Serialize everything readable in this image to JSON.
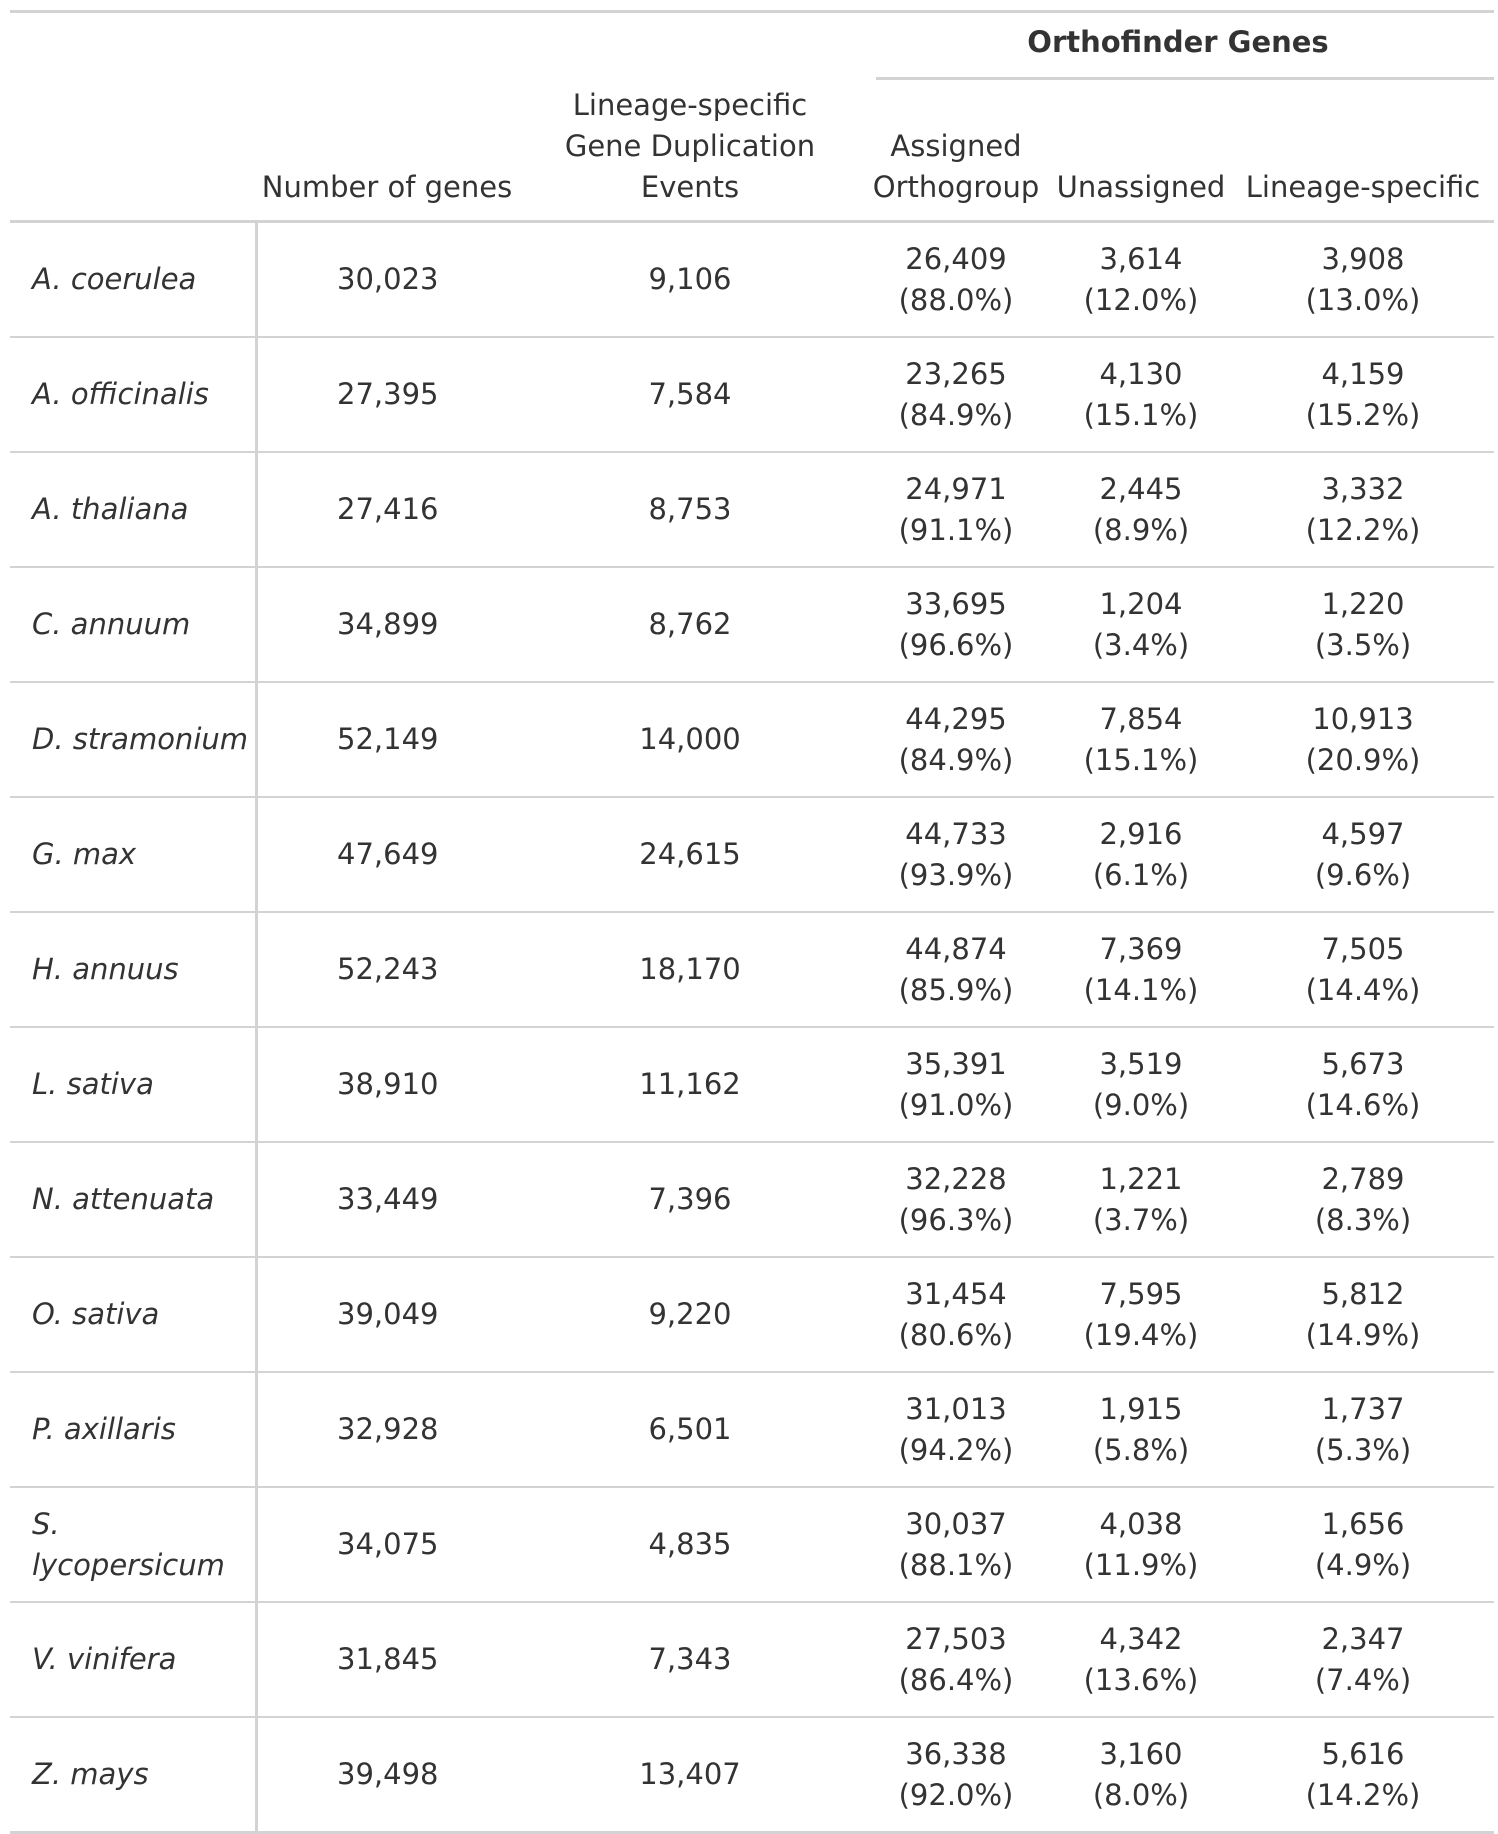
{
  "table": {
    "spanner_label": "Orthofinder Genes",
    "headers": {
      "species": "",
      "genes": "Number of genes",
      "dup_line1": "Lineage-specific",
      "dup_line2": "Gene Duplication Events",
      "assigned_line1": "Assigned",
      "assigned_line2": "Orthogroup",
      "unassigned": "Unassigned",
      "lineage": "Lineage-specific"
    },
    "rows": [
      {
        "species": "A. coerulea",
        "genes": "30,023",
        "dup": "9,106",
        "assigned": "26,409",
        "assigned_pct": "(88.0%)",
        "unassigned": "3,614",
        "unassigned_pct": "(12.0%)",
        "lineage": "3,908",
        "lineage_pct": "(13.0%)"
      },
      {
        "species": "A. officinalis",
        "genes": "27,395",
        "dup": "7,584",
        "assigned": "23,265",
        "assigned_pct": "(84.9%)",
        "unassigned": "4,130",
        "unassigned_pct": "(15.1%)",
        "lineage": "4,159",
        "lineage_pct": "(15.2%)"
      },
      {
        "species": "A. thaliana",
        "genes": "27,416",
        "dup": "8,753",
        "assigned": "24,971",
        "assigned_pct": "(91.1%)",
        "unassigned": "2,445",
        "unassigned_pct": "(8.9%)",
        "lineage": "3,332",
        "lineage_pct": "(12.2%)"
      },
      {
        "species": "C. annuum",
        "genes": "34,899",
        "dup": "8,762",
        "assigned": "33,695",
        "assigned_pct": "(96.6%)",
        "unassigned": "1,204",
        "unassigned_pct": "(3.4%)",
        "lineage": "1,220",
        "lineage_pct": "(3.5%)"
      },
      {
        "species": "D. stramonium",
        "genes": "52,149",
        "dup": "14,000",
        "assigned": "44,295",
        "assigned_pct": "(84.9%)",
        "unassigned": "7,854",
        "unassigned_pct": "(15.1%)",
        "lineage": "10,913",
        "lineage_pct": "(20.9%)"
      },
      {
        "species": "G. max",
        "genes": "47,649",
        "dup": "24,615",
        "assigned": "44,733",
        "assigned_pct": "(93.9%)",
        "unassigned": "2,916",
        "unassigned_pct": "(6.1%)",
        "lineage": "4,597",
        "lineage_pct": "(9.6%)"
      },
      {
        "species": "H. annuus",
        "genes": "52,243",
        "dup": "18,170",
        "assigned": "44,874",
        "assigned_pct": "(85.9%)",
        "unassigned": "7,369",
        "unassigned_pct": "(14.1%)",
        "lineage": "7,505",
        "lineage_pct": "(14.4%)"
      },
      {
        "species": "L. sativa",
        "genes": "38,910",
        "dup": "11,162",
        "assigned": "35,391",
        "assigned_pct": "(91.0%)",
        "unassigned": "3,519",
        "unassigned_pct": "(9.0%)",
        "lineage": "5,673",
        "lineage_pct": "(14.6%)"
      },
      {
        "species": "N. attenuata",
        "genes": "33,449",
        "dup": "7,396",
        "assigned": "32,228",
        "assigned_pct": "(96.3%)",
        "unassigned": "1,221",
        "unassigned_pct": "(3.7%)",
        "lineage": "2,789",
        "lineage_pct": "(8.3%)"
      },
      {
        "species": "O. sativa",
        "genes": "39,049",
        "dup": "9,220",
        "assigned": "31,454",
        "assigned_pct": "(80.6%)",
        "unassigned": "7,595",
        "unassigned_pct": "(19.4%)",
        "lineage": "5,812",
        "lineage_pct": "(14.9%)"
      },
      {
        "species": "P. axillaris",
        "genes": "32,928",
        "dup": "6,501",
        "assigned": "31,013",
        "assigned_pct": "(94.2%)",
        "unassigned": "1,915",
        "unassigned_pct": "(5.8%)",
        "lineage": "1,737",
        "lineage_pct": "(5.3%)"
      },
      {
        "species": "S. lycopersicum",
        "genes": "34,075",
        "dup": "4,835",
        "assigned": "30,037",
        "assigned_pct": "(88.1%)",
        "unassigned": "4,038",
        "unassigned_pct": "(11.9%)",
        "lineage": "1,656",
        "lineage_pct": "(4.9%)"
      },
      {
        "species": "V. vinifera",
        "genes": "31,845",
        "dup": "7,343",
        "assigned": "27,503",
        "assigned_pct": "(86.4%)",
        "unassigned": "4,342",
        "unassigned_pct": "(13.6%)",
        "lineage": "2,347",
        "lineage_pct": "(7.4%)"
      },
      {
        "species": "Z. mays",
        "genes": "39,498",
        "dup": "13,407",
        "assigned": "36,338",
        "assigned_pct": "(92.0%)",
        "unassigned": "3,160",
        "unassigned_pct": "(8.0%)",
        "lineage": "5,616",
        "lineage_pct": "(14.2%)"
      }
    ]
  },
  "colors": {
    "text": "#333333",
    "rule": "#d3d3d3",
    "background": "#ffffff"
  }
}
